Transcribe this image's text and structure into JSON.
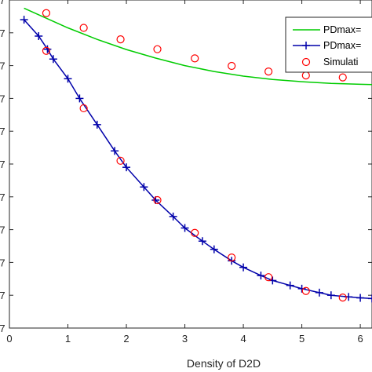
{
  "chart_data": {
    "type": "line",
    "xlabel": "Density of D2D",
    "ylabel": "",
    "xlim": [
      0,
      6.2
    ],
    "ylim": [
      0,
      10
    ],
    "x_ticks": [
      "0",
      "1",
      "2",
      "3",
      "4",
      "5",
      "6"
    ],
    "y_ticks": [
      "7",
      "7",
      "7",
      "7",
      "7",
      "7",
      "7",
      "7",
      "7",
      "7",
      "7"
    ],
    "grid": false,
    "legend_position": "top-right",
    "series": [
      {
        "name": "PDmax=",
        "color": "#00cc00",
        "marker": "none",
        "x": [
          0.25,
          0.6,
          1.0,
          1.5,
          2.0,
          2.5,
          3.0,
          3.5,
          4.0,
          4.5,
          5.0,
          5.5,
          6.0,
          6.2
        ],
        "y": [
          9.75,
          9.47,
          9.15,
          8.8,
          8.49,
          8.23,
          8.0,
          7.82,
          7.68,
          7.58,
          7.51,
          7.46,
          7.43,
          7.42
        ]
      },
      {
        "name": "PDmax=",
        "color": "#0000aa",
        "marker": "plus",
        "x": [
          0.25,
          0.5,
          0.65,
          0.75,
          1.0,
          1.2,
          1.5,
          1.8,
          2.0,
          2.3,
          2.5,
          2.8,
          3.0,
          3.3,
          3.5,
          3.8,
          4.0,
          4.3,
          4.5,
          4.8,
          5.0,
          5.3,
          5.5,
          5.8,
          6.0,
          6.2
        ],
        "y": [
          9.4,
          8.9,
          8.5,
          8.2,
          7.6,
          7.0,
          6.2,
          5.4,
          4.9,
          4.3,
          3.9,
          3.4,
          3.05,
          2.65,
          2.4,
          2.05,
          1.85,
          1.6,
          1.45,
          1.3,
          1.2,
          1.08,
          1.0,
          0.95,
          0.92,
          0.9
        ]
      },
      {
        "name": "Simulati",
        "color": "#ff0000",
        "marker": "circle",
        "x": [
          0.63,
          1.27,
          1.9,
          2.53,
          3.17,
          3.8,
          4.43,
          5.07,
          5.7,
          0.63,
          1.27,
          1.9,
          2.53,
          3.17,
          3.8,
          4.43,
          5.07,
          5.7
        ],
        "y": [
          9.6,
          9.15,
          8.8,
          8.5,
          8.22,
          7.99,
          7.82,
          7.7,
          7.64,
          8.45,
          6.7,
          5.1,
          3.9,
          2.9,
          2.15,
          1.55,
          1.13,
          0.93
        ]
      }
    ]
  }
}
